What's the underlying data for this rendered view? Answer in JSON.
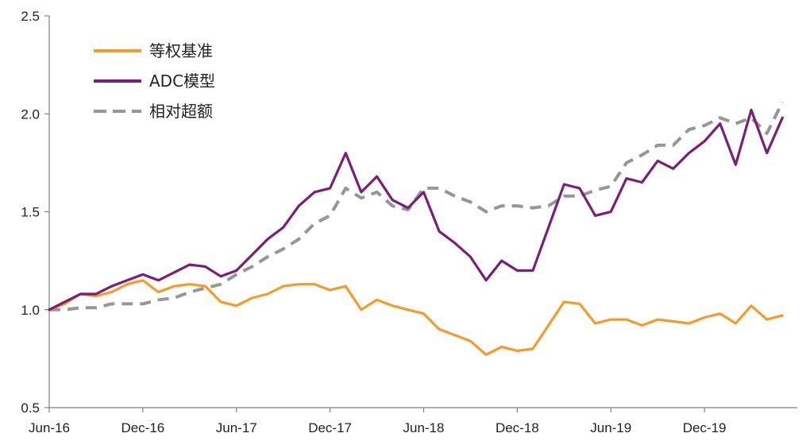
{
  "chart_data": {
    "type": "line",
    "title": "",
    "xlabel": "",
    "ylabel": "",
    "ylim": [
      0.5,
      2.5
    ],
    "yticks": [
      "0.5",
      "1.0",
      "1.5",
      "2.0",
      "2.5"
    ],
    "xticks": [
      "Jun-16",
      "Dec-16",
      "Jun-17",
      "Dec-17",
      "Jun-18",
      "Dec-18",
      "Jun-19",
      "Dec-19"
    ],
    "x_range": [
      "Jun-16",
      "May-20"
    ],
    "grid": false,
    "legend": "top-left",
    "series": [
      {
        "name": "等权基准",
        "color": "#f59a2d",
        "dash": "solid",
        "points": [
          [
            "Jun-16",
            1.0
          ],
          [
            "Jul-16",
            1.03
          ],
          [
            "Aug-16",
            1.08
          ],
          [
            "Sep-16",
            1.07
          ],
          [
            "Oct-16",
            1.09
          ],
          [
            "Nov-16",
            1.13
          ],
          [
            "Dec-16",
            1.15
          ],
          [
            "Jan-17",
            1.09
          ],
          [
            "Feb-17",
            1.12
          ],
          [
            "Mar-17",
            1.13
          ],
          [
            "Apr-17",
            1.12
          ],
          [
            "May-17",
            1.04
          ],
          [
            "Jun-17",
            1.02
          ],
          [
            "Jul-17",
            1.06
          ],
          [
            "Aug-17",
            1.08
          ],
          [
            "Sep-17",
            1.12
          ],
          [
            "Oct-17",
            1.13
          ],
          [
            "Nov-17",
            1.13
          ],
          [
            "Dec-17",
            1.1
          ],
          [
            "Jan-18",
            1.12
          ],
          [
            "Feb-18",
            1.0
          ],
          [
            "Mar-18",
            1.05
          ],
          [
            "Apr-18",
            1.02
          ],
          [
            "May-18",
            1.0
          ],
          [
            "Jun-18",
            0.98
          ],
          [
            "Jul-18",
            0.9
          ],
          [
            "Aug-18",
            0.87
          ],
          [
            "Sep-18",
            0.84
          ],
          [
            "Oct-18",
            0.77
          ],
          [
            "Nov-18",
            0.81
          ],
          [
            "Dec-18",
            0.79
          ],
          [
            "Jan-19",
            0.8
          ],
          [
            "Feb-19",
            0.92
          ],
          [
            "Mar-19",
            1.04
          ],
          [
            "Apr-19",
            1.03
          ],
          [
            "May-19",
            0.93
          ],
          [
            "Jun-19",
            0.95
          ],
          [
            "Jul-19",
            0.95
          ],
          [
            "Aug-19",
            0.92
          ],
          [
            "Sep-19",
            0.95
          ],
          [
            "Oct-19",
            0.94
          ],
          [
            "Nov-19",
            0.93
          ],
          [
            "Dec-19",
            0.96
          ],
          [
            "Jan-20",
            0.98
          ],
          [
            "Feb-20",
            0.93
          ],
          [
            "Mar-20",
            1.02
          ],
          [
            "Apr-20",
            0.95
          ],
          [
            "May-20",
            0.97
          ]
        ]
      },
      {
        "name": "ADC模型",
        "color": "#7b1e7a",
        "dash": "solid",
        "points": [
          [
            "Jun-16",
            1.0
          ],
          [
            "Jul-16",
            1.04
          ],
          [
            "Aug-16",
            1.08
          ],
          [
            "Sep-16",
            1.08
          ],
          [
            "Oct-16",
            1.12
          ],
          [
            "Nov-16",
            1.15
          ],
          [
            "Dec-16",
            1.18
          ],
          [
            "Jan-17",
            1.15
          ],
          [
            "Feb-17",
            1.19
          ],
          [
            "Mar-17",
            1.23
          ],
          [
            "Apr-17",
            1.22
          ],
          [
            "May-17",
            1.17
          ],
          [
            "Jun-17",
            1.2
          ],
          [
            "Jul-17",
            1.28
          ],
          [
            "Aug-17",
            1.36
          ],
          [
            "Sep-17",
            1.42
          ],
          [
            "Oct-17",
            1.53
          ],
          [
            "Nov-17",
            1.6
          ],
          [
            "Dec-17",
            1.62
          ],
          [
            "Jan-18",
            1.8
          ],
          [
            "Feb-18",
            1.6
          ],
          [
            "Mar-18",
            1.68
          ],
          [
            "Apr-18",
            1.56
          ],
          [
            "May-18",
            1.52
          ],
          [
            "Jun-18",
            1.6
          ],
          [
            "Jul-18",
            1.4
          ],
          [
            "Aug-18",
            1.34
          ],
          [
            "Sep-18",
            1.27
          ],
          [
            "Oct-18",
            1.15
          ],
          [
            "Nov-18",
            1.25
          ],
          [
            "Dec-18",
            1.2
          ],
          [
            "Jan-19",
            1.2
          ],
          [
            "Feb-19",
            1.42
          ],
          [
            "Mar-19",
            1.64
          ],
          [
            "Apr-19",
            1.62
          ],
          [
            "May-19",
            1.48
          ],
          [
            "Jun-19",
            1.5
          ],
          [
            "Jul-19",
            1.67
          ],
          [
            "Aug-19",
            1.65
          ],
          [
            "Sep-19",
            1.76
          ],
          [
            "Oct-19",
            1.72
          ],
          [
            "Nov-19",
            1.8
          ],
          [
            "Dec-19",
            1.86
          ],
          [
            "Jan-20",
            1.95
          ],
          [
            "Feb-20",
            1.74
          ],
          [
            "Mar-20",
            2.02
          ],
          [
            "Apr-20",
            1.8
          ],
          [
            "May-20",
            1.98
          ]
        ]
      },
      {
        "name": "相对超额",
        "color": "#969696",
        "dash": "dashed",
        "points": [
          [
            "Jun-16",
            1.0
          ],
          [
            "Jul-16",
            1.0
          ],
          [
            "Aug-16",
            1.01
          ],
          [
            "Sep-16",
            1.01
          ],
          [
            "Oct-16",
            1.03
          ],
          [
            "Nov-16",
            1.03
          ],
          [
            "Dec-16",
            1.03
          ],
          [
            "Jan-17",
            1.05
          ],
          [
            "Feb-17",
            1.06
          ],
          [
            "Mar-17",
            1.09
          ],
          [
            "Apr-17",
            1.11
          ],
          [
            "May-17",
            1.13
          ],
          [
            "Jun-17",
            1.18
          ],
          [
            "Jul-17",
            1.22
          ],
          [
            "Aug-17",
            1.27
          ],
          [
            "Sep-17",
            1.31
          ],
          [
            "Oct-17",
            1.36
          ],
          [
            "Nov-17",
            1.44
          ],
          [
            "Dec-17",
            1.48
          ],
          [
            "Jan-18",
            1.62
          ],
          [
            "Feb-18",
            1.57
          ],
          [
            "Mar-18",
            1.6
          ],
          [
            "Apr-18",
            1.53
          ],
          [
            "May-18",
            1.51
          ],
          [
            "Jun-18",
            1.62
          ],
          [
            "Jul-18",
            1.62
          ],
          [
            "Aug-18",
            1.58
          ],
          [
            "Sep-18",
            1.55
          ],
          [
            "Oct-18",
            1.5
          ],
          [
            "Nov-18",
            1.53
          ],
          [
            "Dec-18",
            1.53
          ],
          [
            "Jan-19",
            1.52
          ],
          [
            "Feb-19",
            1.53
          ],
          [
            "Mar-19",
            1.58
          ],
          [
            "Apr-19",
            1.58
          ],
          [
            "May-19",
            1.61
          ],
          [
            "Jun-19",
            1.63
          ],
          [
            "Jul-19",
            1.75
          ],
          [
            "Aug-19",
            1.79
          ],
          [
            "Sep-19",
            1.84
          ],
          [
            "Oct-19",
            1.84
          ],
          [
            "Nov-19",
            1.92
          ],
          [
            "Dec-19",
            1.94
          ],
          [
            "Jan-20",
            1.98
          ],
          [
            "Feb-20",
            1.95
          ],
          [
            "Mar-20",
            1.98
          ],
          [
            "Apr-20",
            1.9
          ],
          [
            "May-20",
            2.06
          ]
        ]
      }
    ]
  }
}
